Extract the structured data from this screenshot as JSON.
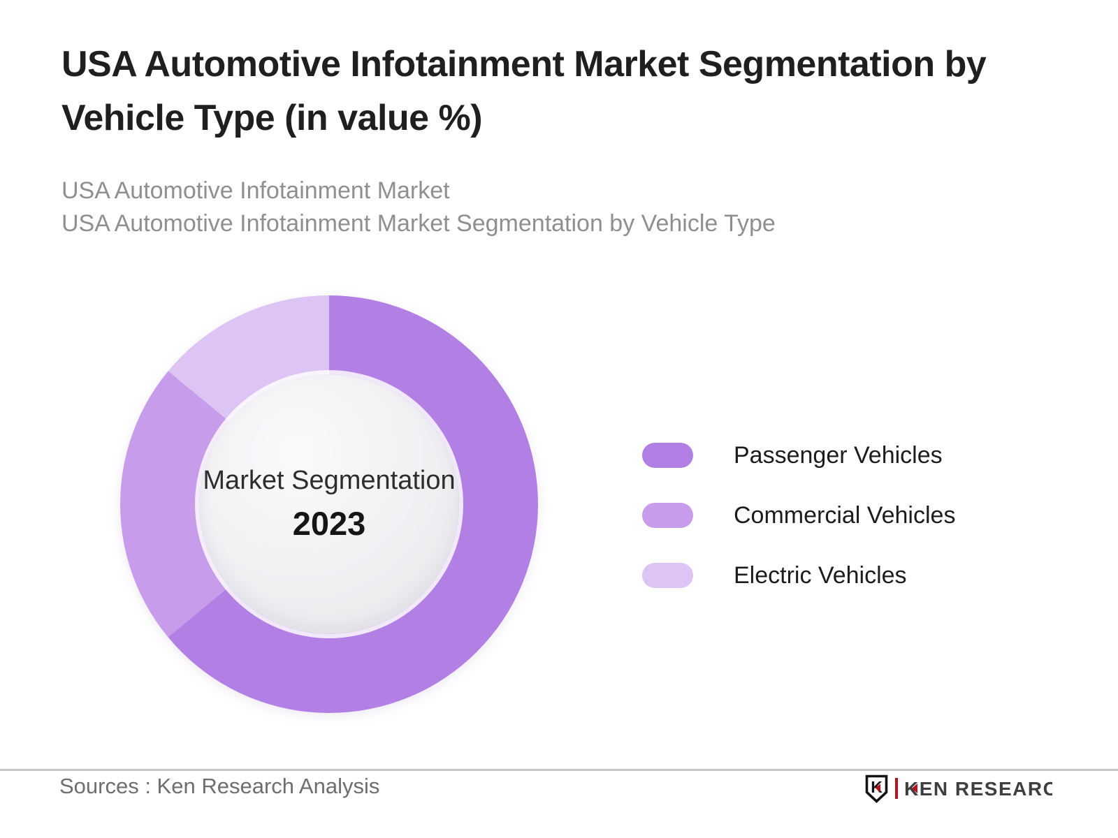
{
  "page": {
    "background": "#ffffff"
  },
  "header": {
    "title_lines": [
      "USA Automotive Infotainment Market Segmentation by",
      "Vehicle Type (in value %)"
    ],
    "subtitle_lines": [
      "USA Automotive Infotainment Market",
      "USA Automotive Infotainment Market Segmentation by Vehicle Type"
    ]
  },
  "chart_data": {
    "type": "pie",
    "subtype": "donut",
    "title": "USA Automotive Infotainment Market Segmentation by Vehicle Type (in value %)",
    "center_label": "Market Segmentation",
    "center_year": "2023",
    "labels": [
      "Passenger Vehicles",
      "Commercial Vehicles",
      "Electric Vehicles"
    ],
    "values": [
      64,
      22,
      14
    ],
    "value_unit": "%",
    "colors": [
      "#b27fe5",
      "#c69ceb",
      "#dcc4f4"
    ],
    "start_angle_deg": 0,
    "direction": "clockwise",
    "legend_position": "right",
    "hole_ratio": 0.62
  },
  "footer": {
    "source_text": "Sources : Ken Research Analysis",
    "logo_text": "KEN RESEARCH",
    "logo_accent_color": "#b5121b"
  }
}
